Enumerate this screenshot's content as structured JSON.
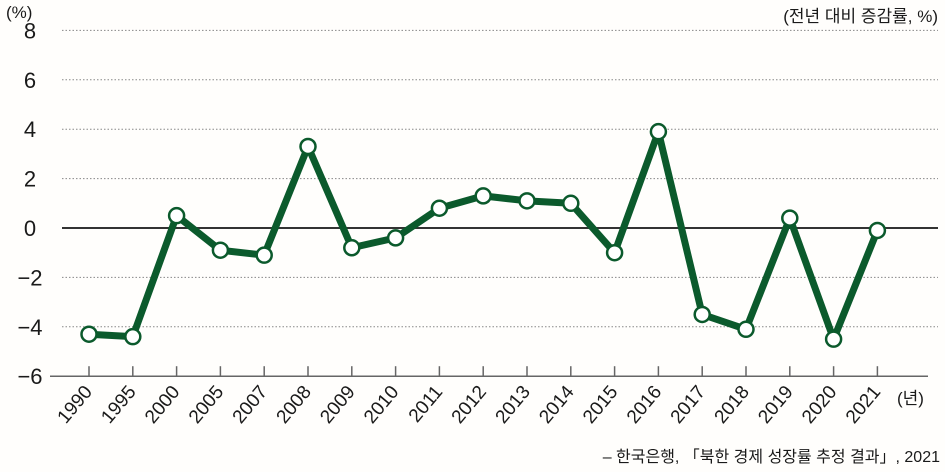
{
  "chart_data": {
    "type": "line",
    "title": "",
    "ylabel": "(%)",
    "unit_note": "(전년 대비 증감률, %)",
    "xlabel": "(년)",
    "source": "– 한국은행, 「북한 경제 성장률 추정 결과」, 2021",
    "ylim": [
      -6,
      8
    ],
    "yticks": [
      8,
      6,
      4,
      2,
      0,
      -2,
      -4,
      -6
    ],
    "ytick_labels": [
      "8",
      "6",
      "4",
      "2",
      "0",
      "−2",
      "−4",
      "−6"
    ],
    "grid": "horizontal dotted",
    "categories": [
      "1990",
      "1995",
      "2000",
      "2005",
      "2007",
      "2008",
      "2009",
      "2010",
      "2011",
      "2012",
      "2013",
      "2014",
      "2015",
      "2016",
      "2017",
      "2018",
      "2019",
      "2020",
      "2021"
    ],
    "series": [
      {
        "name": "북한 경제 성장률",
        "color": "#0b5a2c",
        "values": [
          -4.3,
          -4.4,
          0.5,
          -0.9,
          -1.1,
          3.3,
          -0.8,
          -0.4,
          0.8,
          1.3,
          1.1,
          1.0,
          -1.0,
          3.9,
          -3.5,
          -4.1,
          0.4,
          -4.5,
          -0.1
        ]
      }
    ],
    "legend": null
  },
  "labels": {
    "y_unit": "(%)",
    "unit_note": "(전년 대비 증감률, %)",
    "x_unit": "(년)",
    "source": "– 한국은행, 「북한 경제 성장률 추정 결과」, 2021"
  },
  "colors": {
    "line": "#0b5a2c",
    "marker_fill": "#ffffff",
    "grid": "#888888",
    "zero_line": "#333333",
    "axis": "#666666"
  }
}
